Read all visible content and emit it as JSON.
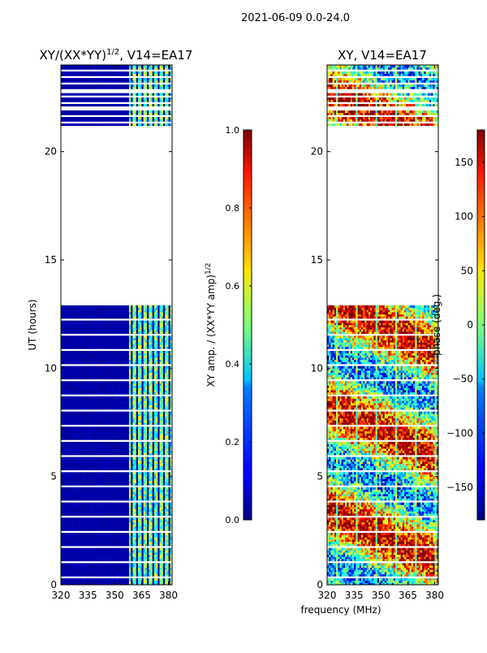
{
  "figure_title": "2021-06-09 0.0-24.0",
  "shared_xlabel": "frequency (MHz)",
  "colors": {
    "background": "#ffffff",
    "missing_data": "#ffffff",
    "axis": "#000000"
  },
  "chart_data": [
    {
      "type": "heatmap",
      "title_main": "XY/(XX*YY)",
      "title_sup": "1/2",
      "title_tail": ", V14=EA17",
      "xlabel": "",
      "ylabel": "UT (hours)",
      "xlim": [
        320,
        382
      ],
      "ylim": [
        0,
        24
      ],
      "xticks": [
        320,
        335,
        350,
        365,
        380
      ],
      "yticks": [
        0,
        5,
        10,
        15,
        20
      ],
      "data_gaps_hours": [
        [
          13.0,
          21.2
        ]
      ],
      "colormap": "jet",
      "colorbar": {
        "label_main": "XY amp. / (XX*YY amp)",
        "label_sup": "1/2",
        "range": [
          0.0,
          1.0
        ],
        "ticks": [
          "0.0",
          "0.2",
          "0.4",
          "0.6",
          "0.8",
          "1.0"
        ]
      },
      "description_values": {
        "low_band_value": 0.0,
        "high_band_mean": 0.45,
        "high_band_start_mhz": 360,
        "high_band_end_mhz": 378
      }
    },
    {
      "type": "heatmap",
      "title_main": "XY, V14=EA17",
      "title_sup": "",
      "title_tail": "",
      "xlabel": "frequency (MHz)",
      "ylabel": "",
      "xlim": [
        320,
        382
      ],
      "ylim": [
        0,
        24
      ],
      "xticks": [
        320,
        335,
        350,
        365,
        380
      ],
      "yticks": [
        0,
        5,
        10,
        15,
        20
      ],
      "data_gaps_hours": [
        [
          13.0,
          21.2
        ]
      ],
      "colormap": "jet",
      "colorbar": {
        "label_main": "phase (deg.)",
        "label_sup": "",
        "range": [
          -180,
          180
        ],
        "ticks": [
          "−150",
          "−100",
          "−50",
          "0",
          "50",
          "100",
          "150"
        ]
      }
    }
  ]
}
